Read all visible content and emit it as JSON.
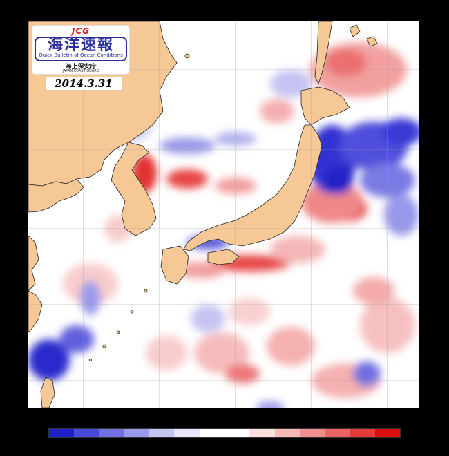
{
  "logo": {
    "brand": "JCG",
    "title": "海洋速報",
    "subtitle": "Quick Bulletin of Ocean Conditions",
    "agency": "海上保安庁",
    "agency_en": "JAPAN COAST GUARD"
  },
  "date": "2014.3.31",
  "colorbar": {
    "colors": [
      "#2020c8",
      "#4a4ad8",
      "#7070e0",
      "#9a9aea",
      "#c4c4f2",
      "#e6e6fa",
      "#ffffff",
      "#ffffff",
      "#fbdede",
      "#f7b8b8",
      "#f29090",
      "#ec6464",
      "#e43a3a",
      "#d80e0e"
    ]
  },
  "map": {
    "land_color": "#f6c896",
    "grid_color": "#9a9a9a"
  }
}
